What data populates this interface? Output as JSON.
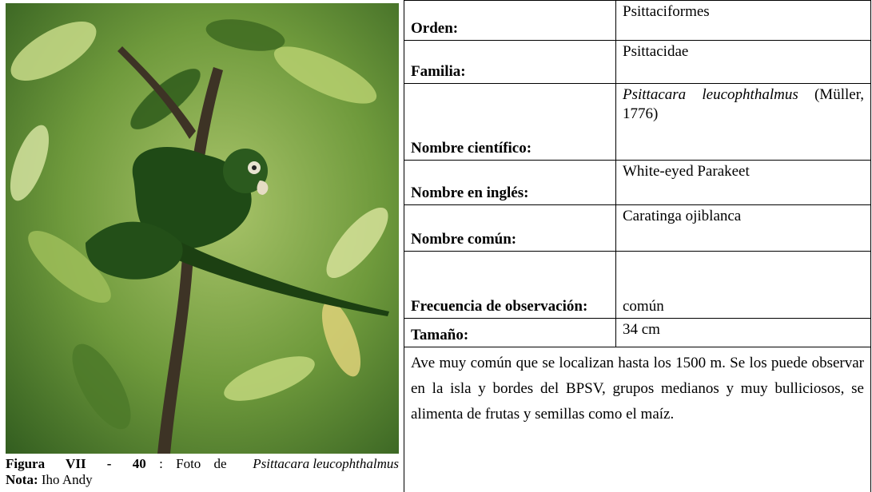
{
  "figure": {
    "caption_label": "Figura VII - 40",
    "caption_text": ": Foto de ",
    "caption_species": "Psittacara leucophthalmus",
    "note_label": "Nota:",
    "note_text": "Iho Andy"
  },
  "table": {
    "rows": [
      {
        "label": "Orden:",
        "value": "Psittaciformes"
      },
      {
        "label": "Familia:",
        "value": "Psittacidae"
      },
      {
        "label": "Nombre científico:",
        "value": "Psittacara leucophthalmus",
        "author": "(Müller, 1776)"
      },
      {
        "label": "Nombre en inglés:",
        "value": "White-eyed Parakeet"
      },
      {
        "label": "Nombre común:",
        "value": "Caratinga ojiblanca"
      },
      {
        "label": "Frecuencia de observación:",
        "value": "común"
      },
      {
        "label": "Tamaño:",
        "value": "34 cm"
      }
    ],
    "description": "Ave muy común que se localizan hasta los 1500 m. Se los puede observar en la isla y bordes del BPSV, grupos medianos y muy bulliciosos, se alimenta de frutas y semillas como el maíz."
  }
}
